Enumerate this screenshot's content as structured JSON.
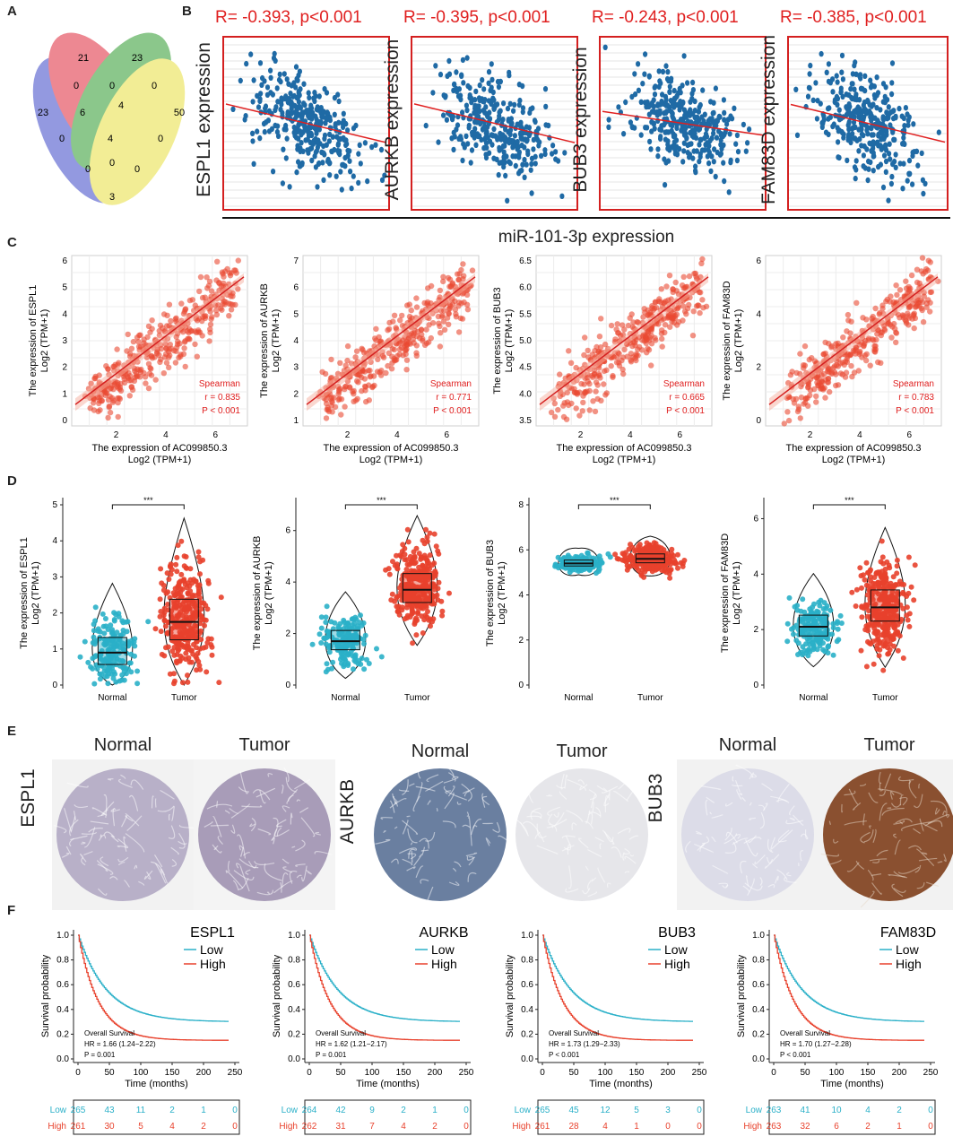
{
  "panels": {
    "A": "A",
    "B": "B",
    "C": "C",
    "D": "D",
    "E": "E",
    "F": "F"
  },
  "venn": {
    "counts": [
      "21",
      "23",
      "23",
      "50",
      "0",
      "0",
      "0",
      "6",
      "4",
      "0",
      "0",
      "4",
      "0",
      "0",
      "3",
      "0"
    ]
  },
  "panelB": {
    "xlabel": "miR-101-3p expression",
    "plots": [
      {
        "gene_label": "ESPL1 expression",
        "stat": "R= -0.393, p<0.001",
        "r": -0.393
      },
      {
        "gene_label": "AURKB expression",
        "stat": "R= -0.395, p<0.001",
        "r": -0.395
      },
      {
        "gene_label": "BUB3 expression",
        "stat": "R= -0.243, p<0.001",
        "r": -0.243
      },
      {
        "gene_label": "FAM83D expression",
        "stat": "R= -0.385, p<0.001",
        "r": -0.385
      }
    ]
  },
  "panelC": {
    "xlabel_line1": "The expression of AC099850.3",
    "xlabel_line2": "Log2 (TPM+1)",
    "plots": [
      {
        "ylabel1": "The expression of ESPL1",
        "ylabel2": "Log2 (TPM+1)",
        "spearman": "Spearman",
        "r": "r = 0.835",
        "p": "P < 0.001",
        "yticks": [
          "0",
          "1",
          "2",
          "3",
          "4",
          "5",
          "6"
        ],
        "ymin": 0,
        "ymax": 6,
        "xticks": [
          "2",
          "4",
          "6"
        ]
      },
      {
        "ylabel1": "The expression of AURKB",
        "ylabel2": "Log2 (TPM+1)",
        "spearman": "Spearman",
        "r": "r = 0.771",
        "p": "P < 0.001",
        "yticks": [
          "1",
          "2",
          "3",
          "4",
          "5",
          "6",
          "7"
        ],
        "ymin": 1,
        "ymax": 7,
        "xticks": [
          "2",
          "4",
          "6"
        ]
      },
      {
        "ylabel1": "The expression of BUB3",
        "ylabel2": "Log2 (TPM+1)",
        "spearman": "Spearman",
        "r": "r = 0.665",
        "p": "P < 0.001",
        "yticks": [
          "3.5",
          "4.0",
          "4.5",
          "5.0",
          "5.5",
          "6.0",
          "6.5"
        ],
        "ymin": 3.5,
        "ymax": 6.5,
        "xticks": [
          "2",
          "4",
          "6"
        ]
      },
      {
        "ylabel1": "The expression of FAM83D",
        "ylabel2": "Log2 (TPM+1)",
        "spearman": "Spearman",
        "r": "r = 0.783",
        "p": "P < 0.001",
        "yticks": [
          "0",
          "2",
          "4",
          "6"
        ],
        "ymin": 0,
        "ymax": 6,
        "xticks": [
          "2",
          "4",
          "6"
        ]
      }
    ]
  },
  "panelD": {
    "groups": [
      "Normal",
      "Tumor"
    ],
    "sig": "***",
    "colors": {
      "normal": "#2ab0c8",
      "tumor": "#e8412c"
    },
    "plots": [
      {
        "ylabel1": "The expression of ESPL1",
        "ylabel2": "Log2 (TPM+1)",
        "yticks": [
          "0",
          "1",
          "2",
          "3",
          "4",
          "5"
        ],
        "ymax": 5,
        "normal_median": 0.9,
        "tumor_median": 1.75
      },
      {
        "ylabel1": "The expression of AURKB",
        "ylabel2": "Log2 (TPM+1)",
        "yticks": [
          "0",
          "2",
          "4",
          "6"
        ],
        "ymax": 7,
        "normal_median": 1.7,
        "tumor_median": 3.7
      },
      {
        "ylabel1": "The expression of BUB3",
        "ylabel2": "Log2 (TPM+1)",
        "yticks": [
          "0",
          "2",
          "4",
          "6",
          "8"
        ],
        "ymax": 8,
        "normal_median": 5.4,
        "tumor_median": 5.6
      },
      {
        "ylabel1": "The expression of FAM83D",
        "ylabel2": "Log2 (TPM+1)",
        "yticks": [
          "0",
          "2",
          "4",
          "6"
        ],
        "ymax": 6.5,
        "normal_median": 2.1,
        "tumor_median": 2.8
      }
    ]
  },
  "panelE": {
    "genes": [
      "ESPL1",
      "AURKB",
      "BUB3"
    ],
    "normal_label": "Normal",
    "tumor_label": "Tumor"
  },
  "panelF": {
    "xlabel": "Time (months)",
    "ylabel": "Survival probability",
    "legend_low": "Low",
    "legend_high": "High",
    "overall": "Overall Survival",
    "colors": {
      "low": "#2ab0c8",
      "high": "#e8412c"
    },
    "xticks": [
      "0",
      "50",
      "100",
      "150",
      "200",
      "250"
    ],
    "yticks": [
      "0.0",
      "0.2",
      "0.4",
      "0.6",
      "0.8",
      "1.0"
    ],
    "plots": [
      {
        "gene": "ESPL1",
        "hr": "HR = 1.66 (1.24−2.22)",
        "p": "P = 0.001",
        "risk_low": [
          "265",
          "43",
          "11",
          "2",
          "1",
          "0"
        ],
        "risk_high": [
          "261",
          "30",
          "5",
          "4",
          "2",
          "0"
        ]
      },
      {
        "gene": "AURKB",
        "hr": "HR = 1.62 (1.21−2.17)",
        "p": "P = 0.001",
        "risk_low": [
          "264",
          "42",
          "9",
          "2",
          "1",
          "0"
        ],
        "risk_high": [
          "262",
          "31",
          "7",
          "4",
          "2",
          "0"
        ]
      },
      {
        "gene": "BUB3",
        "hr": "HR = 1.73 (1.29−2.33)",
        "p": "P < 0.001",
        "risk_low": [
          "265",
          "45",
          "12",
          "5",
          "3",
          "0"
        ],
        "risk_high": [
          "261",
          "28",
          "4",
          "1",
          "0",
          "0"
        ]
      },
      {
        "gene": "FAM83D",
        "hr": "HR = 1.70 (1.27−2.28)",
        "p": "P < 0.001",
        "risk_low": [
          "263",
          "41",
          "10",
          "4",
          "2",
          "0"
        ],
        "risk_high": [
          "263",
          "32",
          "6",
          "2",
          "1",
          "0"
        ]
      }
    ],
    "risk_labels": [
      "Low",
      "High"
    ]
  }
}
